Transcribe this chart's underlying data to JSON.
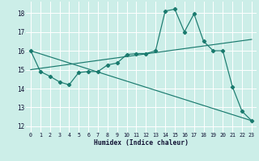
{
  "xlabel": "Humidex (Indice chaleur)",
  "bg_color": "#cceee8",
  "grid_color": "#ffffff",
  "line_color": "#1a7a6e",
  "xlim": [
    -0.5,
    23.5
  ],
  "ylim": [
    11.7,
    18.6
  ],
  "xticks": [
    0,
    1,
    2,
    3,
    4,
    5,
    6,
    7,
    8,
    9,
    10,
    11,
    12,
    13,
    14,
    15,
    16,
    17,
    18,
    19,
    20,
    21,
    22,
    23
  ],
  "yticks": [
    12,
    13,
    14,
    15,
    16,
    17,
    18
  ],
  "line1_x": [
    0,
    1,
    2,
    3,
    4,
    5,
    6,
    7,
    8,
    9,
    10,
    11,
    12,
    13,
    14,
    15,
    16,
    17,
    18,
    19,
    20,
    21,
    22,
    23
  ],
  "line1_y": [
    16.0,
    14.9,
    14.65,
    14.35,
    14.2,
    14.85,
    14.9,
    14.9,
    15.25,
    15.35,
    15.8,
    15.85,
    15.85,
    16.0,
    18.1,
    18.2,
    17.0,
    17.95,
    16.5,
    16.0,
    16.0,
    14.1,
    12.8,
    12.3
  ],
  "line2_x": [
    0,
    23
  ],
  "line2_y": [
    16.0,
    12.3
  ],
  "line3_x": [
    0,
    23
  ],
  "line3_y": [
    15.0,
    16.6
  ]
}
